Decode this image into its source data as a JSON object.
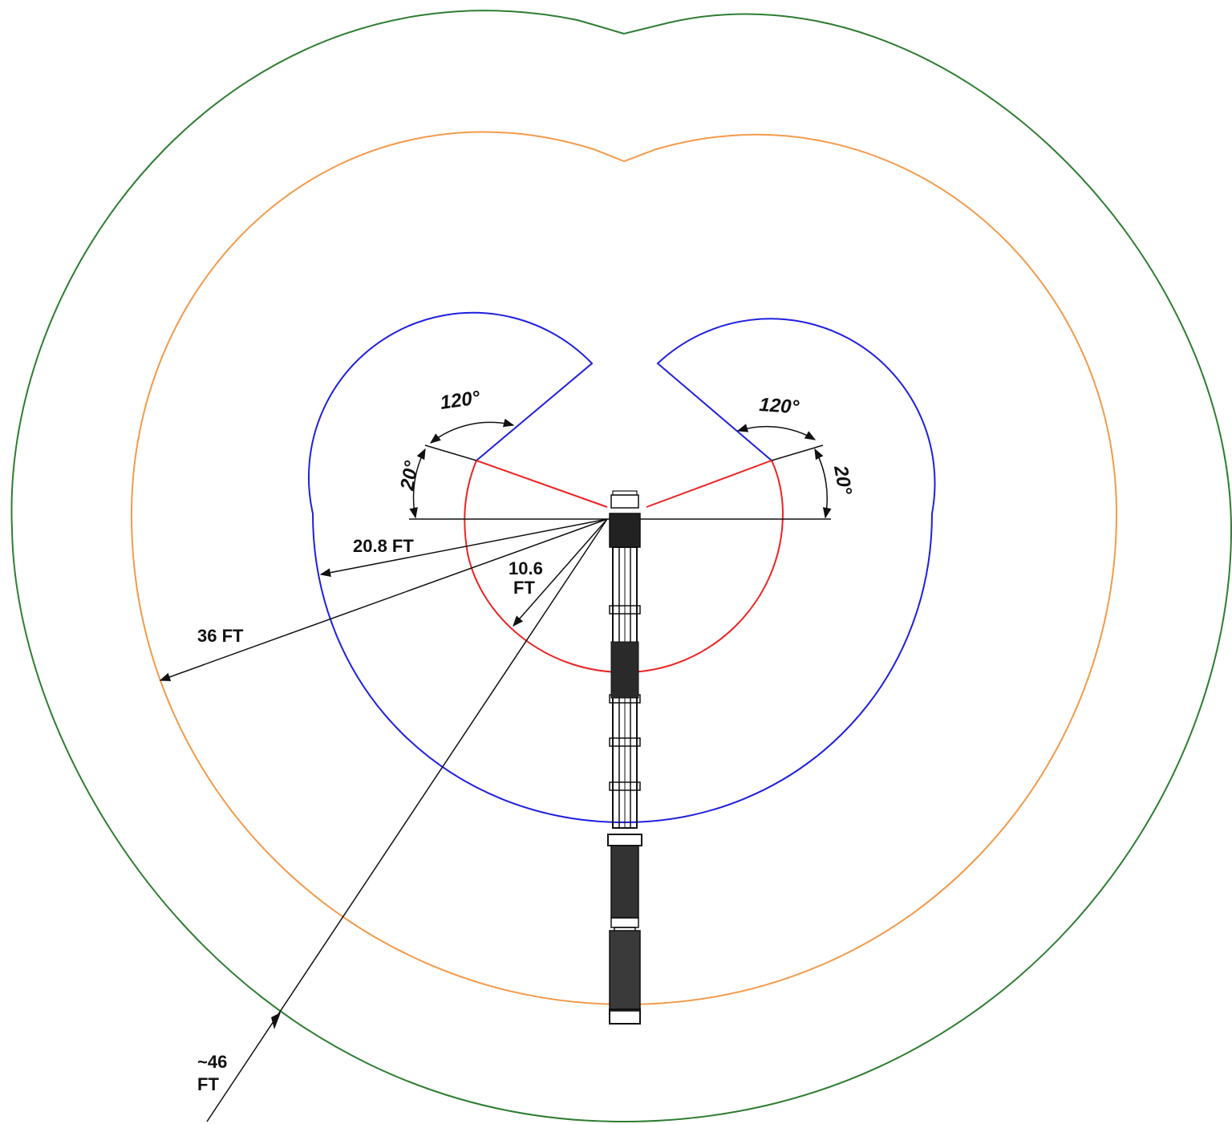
{
  "zones": [
    {
      "id": "green",
      "color": "#2e7d32"
    },
    {
      "id": "orange",
      "color": "#f39a4a"
    },
    {
      "id": "blue",
      "color": "#1f1fe0"
    },
    {
      "id": "red",
      "color": "#ee2222"
    }
  ],
  "labels": {
    "radius_red": [
      "10.6",
      "FT"
    ],
    "radius_blue": "20.8 FT",
    "radius_orange": "36 FT",
    "radius_green": [
      "~46",
      "FT"
    ],
    "angle_left_outer": "120°",
    "angle_left_inner": "20°",
    "angle_right_outer": "120°",
    "angle_right_inner": "20°"
  }
}
